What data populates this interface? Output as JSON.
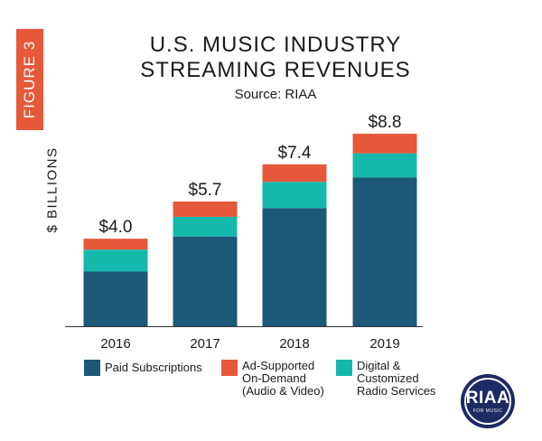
{
  "figure_tag": "FIGURE 3",
  "colors": {
    "paid": "#1c5877",
    "ad": "#e5583a",
    "radio": "#14b9ac",
    "accent": "#e5583a",
    "logo": "#1d2a63"
  },
  "logo": {
    "text": "RIAA",
    "sub": "FOR MUSIC"
  },
  "chart_data": {
    "type": "bar",
    "stacked": true,
    "title": "U.S. MUSIC INDUSTRY\nSTREAMING REVENUES",
    "subtitle": "Source: RIAA",
    "ylabel": "$ BILLIONS",
    "xlabel": "",
    "grid": false,
    "legend_position": "bottom",
    "ylim": [
      0,
      9.5
    ],
    "categories": [
      "2016",
      "2017",
      "2018",
      "2019"
    ],
    "totals_labels": [
      "$4.0",
      "$5.7",
      "$7.4",
      "$8.8"
    ],
    "series": [
      {
        "name": "Paid Subscriptions",
        "values": [
          2.5,
          4.1,
          5.4,
          6.8
        ],
        "color": "#1c5877"
      },
      {
        "name": "Digital & Customized Radio Services",
        "values": [
          1.0,
          0.9,
          1.2,
          1.1
        ],
        "color": "#14b9ac"
      },
      {
        "name": "Ad-Supported On-Demand (Audio & Video)",
        "values": [
          0.5,
          0.7,
          0.8,
          0.9
        ],
        "color": "#e5583a"
      }
    ],
    "legend": [
      {
        "label": "Paid Subscriptions",
        "color": "#1c5877"
      },
      {
        "label": "Ad-Supported\nOn-Demand\n(Audio & Video)",
        "color": "#e5583a"
      },
      {
        "label": "Digital &\nCustomized\nRadio Services",
        "color": "#14b9ac"
      }
    ]
  }
}
